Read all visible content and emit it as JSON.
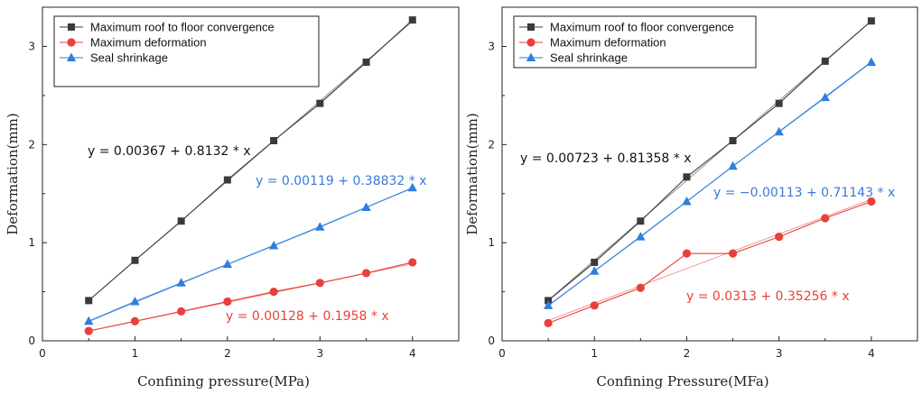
{
  "chart_data": [
    {
      "type": "line",
      "xlabel": "Confining pressure(MPa)",
      "ylabel": "Deformation(mm)",
      "xlim": [
        0,
        4.5
      ],
      "ylim": [
        0,
        3.4
      ],
      "xticks": [
        "0",
        "1",
        "2",
        "3",
        "4"
      ],
      "yticks": [
        "0",
        "1",
        "2",
        "3"
      ],
      "legend_position": "top-left",
      "x": [
        0.5,
        1.0,
        1.5,
        2.0,
        2.5,
        3.0,
        3.5,
        4.0
      ],
      "series": [
        {
          "name": "Maximum  roof to floor convergence",
          "marker": "square",
          "color": "#3a3a3a",
          "values": [
            0.41,
            0.82,
            1.22,
            1.64,
            2.04,
            2.42,
            2.84,
            3.27
          ],
          "fit": [
            0.00367,
            0.8132
          ],
          "equation": "y = 0.00367 + 0.8132 * x",
          "equation_color": "#111111"
        },
        {
          "name": "Maximum deformation",
          "marker": "circle",
          "color": "#e8403a",
          "values": [
            0.1,
            0.2,
            0.3,
            0.4,
            0.5,
            0.59,
            0.69,
            0.8
          ],
          "fit": [
            0.00128,
            0.1958
          ],
          "equation": "y = 0.00128 + 0.1958 * x",
          "equation_color": "#e8403a"
        },
        {
          "name": "Seal shrinkage",
          "marker": "triangle",
          "color": "#2f7fdc",
          "values": [
            0.2,
            0.4,
            0.59,
            0.78,
            0.97,
            1.16,
            1.36,
            1.56
          ],
          "fit": [
            0.00119,
            0.38832
          ],
          "equation": "y = 0.00119 + 0.38832 * x",
          "equation_color": "#3a7bd5"
        }
      ]
    },
    {
      "type": "line",
      "xlabel": "Confining Pressure(MFa)",
      "ylabel": "Deformation(mm)",
      "xlim": [
        0,
        4.5
      ],
      "ylim": [
        0,
        3.4
      ],
      "xticks": [
        "0",
        "1",
        "2",
        "3",
        "4"
      ],
      "yticks": [
        "0",
        "1",
        "2",
        "3"
      ],
      "legend_position": "top-left",
      "x": [
        0.5,
        1.0,
        1.5,
        2.0,
        2.5,
        3.0,
        3.5,
        4.0
      ],
      "series": [
        {
          "name": "Maximum  roof to floor convergence",
          "marker": "square",
          "color": "#3a3a3a",
          "values": [
            0.41,
            0.8,
            1.22,
            1.67,
            2.04,
            2.42,
            2.85,
            3.26
          ],
          "fit": [
            0.00723,
            0.81358
          ],
          "equation": "y = 0.00723 + 0.81358 * x",
          "equation_color": "#111111"
        },
        {
          "name": "Maximum deformation",
          "marker": "circle",
          "color": "#e8403a",
          "values": [
            0.18,
            0.36,
            0.54,
            0.89,
            0.89,
            1.06,
            1.25,
            1.42
          ],
          "fit": [
            0.0313,
            0.35256
          ],
          "equation": "y = 0.0313 + 0.35256 * x",
          "equation_color": "#e8403a"
        },
        {
          "name": "Seal shrinkage",
          "marker": "triangle",
          "color": "#2f7fdc",
          "values": [
            0.36,
            0.71,
            1.06,
            1.42,
            1.78,
            2.13,
            2.48,
            2.84
          ],
          "fit": [
            -0.00113,
            0.71143
          ],
          "equation": "y = −0.00113 + 0.71143 * x",
          "equation_color": "#3a7bd5"
        }
      ]
    }
  ]
}
